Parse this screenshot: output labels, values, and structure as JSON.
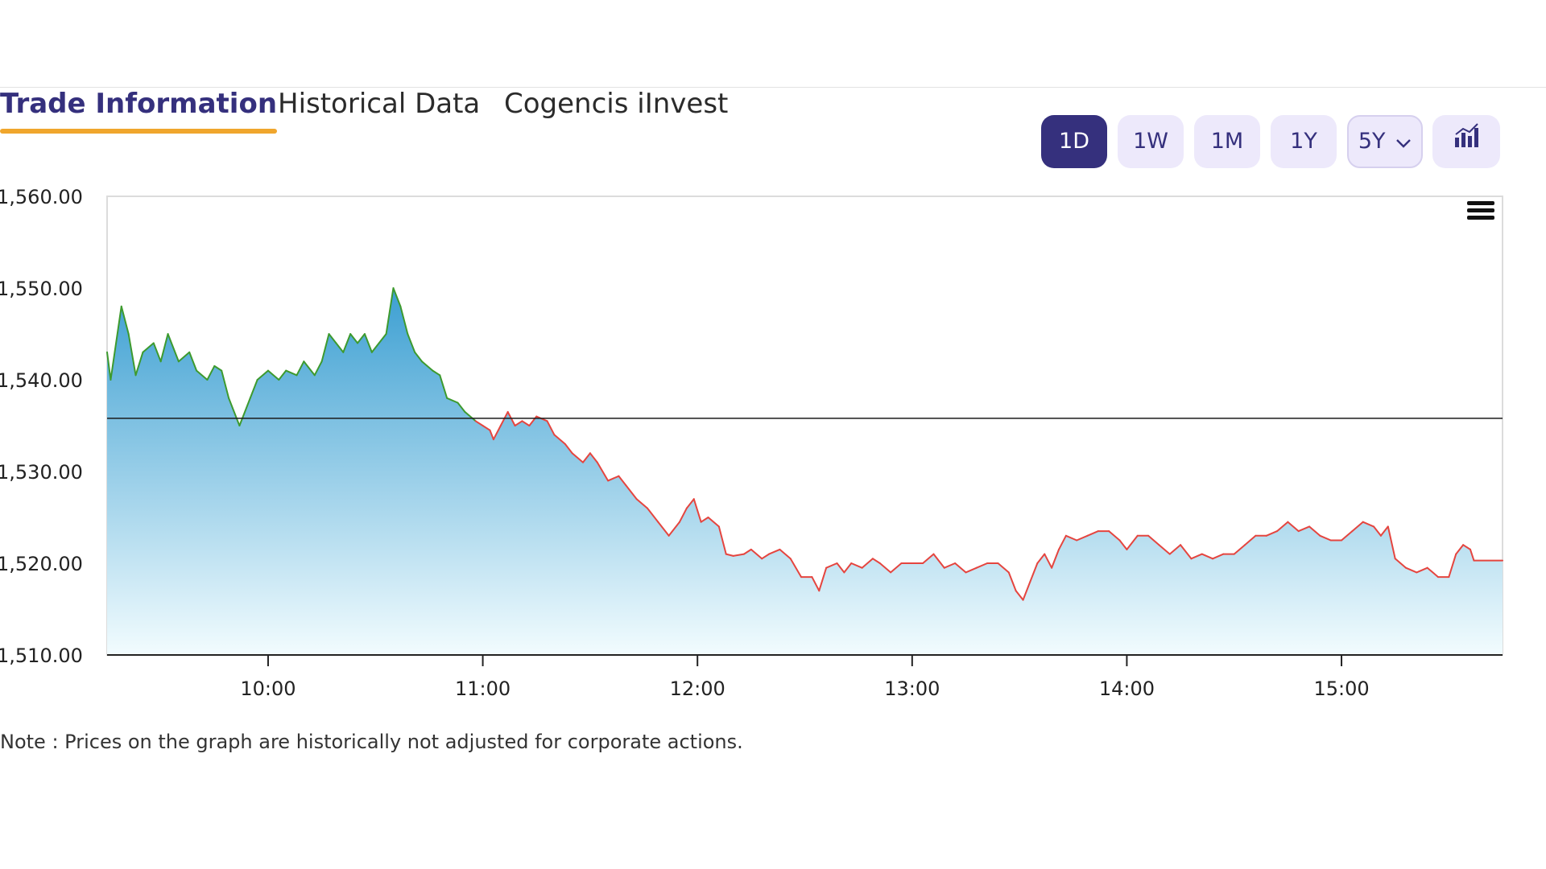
{
  "tabs": [
    {
      "label": "Trade Information",
      "active": true
    },
    {
      "label": "Historical Data",
      "active": false
    },
    {
      "label": "Cogencis iInvest",
      "active": false
    }
  ],
  "range_buttons": [
    {
      "label": "1D",
      "active": true
    },
    {
      "label": "1W",
      "active": false
    },
    {
      "label": "1M",
      "active": false
    },
    {
      "label": "1Y",
      "active": false
    },
    {
      "label": "5Y",
      "active": false,
      "dropdown": true
    }
  ],
  "icons": {
    "chart_type": "bar-chart-icon",
    "chart_menu": "hamburger-menu-icon",
    "dropdown": "chevron-down-icon"
  },
  "colors": {
    "accent": "#35307d",
    "tab_underline": "#f0a62d",
    "line_up": "#3d9a2e",
    "line_down": "#e5453f",
    "area_top": "#3c9fd2",
    "area_bottom": "#f2fcfe",
    "reference_line": "#1a1a1a"
  },
  "note": "Note : Prices on the graph are historically not adjusted for corporate actions.",
  "chart_data": {
    "type": "area",
    "x_unit": "time (HH:MM)",
    "xlim": [
      "09:15",
      "15:45"
    ],
    "ylim": [
      1510,
      1560
    ],
    "y_ticks": [
      "1,510.00",
      "1,520.00",
      "1,530.00",
      "1,540.00",
      "1,550.00",
      "1,560.00"
    ],
    "x_ticks": [
      "10:00",
      "11:00",
      "12:00",
      "13:00",
      "14:00",
      "15:00"
    ],
    "reference_line": 1535.8,
    "series": [
      {
        "points": [
          [
            "09:15",
            1543
          ],
          [
            "09:16",
            1540
          ],
          [
            "09:19",
            1548
          ],
          [
            "09:21",
            1545
          ],
          [
            "09:23",
            1540.5
          ],
          [
            "09:25",
            1543
          ],
          [
            "09:28",
            1544
          ],
          [
            "09:30",
            1542
          ],
          [
            "09:32",
            1545
          ],
          [
            "09:35",
            1542
          ],
          [
            "09:38",
            1543
          ],
          [
            "09:40",
            1541
          ],
          [
            "09:43",
            1540
          ],
          [
            "09:45",
            1541.5
          ],
          [
            "09:47",
            1541
          ],
          [
            "09:49",
            1538
          ],
          [
            "09:52",
            1535
          ],
          [
            "09:55",
            1538
          ],
          [
            "09:57",
            1540
          ],
          [
            "10:00",
            1541
          ],
          [
            "10:03",
            1540
          ],
          [
            "10:05",
            1541
          ],
          [
            "10:08",
            1540.5
          ],
          [
            "10:10",
            1542
          ],
          [
            "10:13",
            1540.5
          ],
          [
            "10:15",
            1542
          ],
          [
            "10:17",
            1545
          ],
          [
            "10:19",
            1544
          ],
          [
            "10:21",
            1543
          ],
          [
            "10:23",
            1545
          ],
          [
            "10:25",
            1544
          ],
          [
            "10:27",
            1545
          ],
          [
            "10:29",
            1543
          ],
          [
            "10:31",
            1544
          ],
          [
            "10:33",
            1545
          ],
          [
            "10:35",
            1550
          ],
          [
            "10:37",
            1548
          ],
          [
            "10:39",
            1545
          ],
          [
            "10:41",
            1543
          ],
          [
            "10:43",
            1542
          ],
          [
            "10:46",
            1541
          ],
          [
            "10:48",
            1540.5
          ],
          [
            "10:50",
            1538
          ],
          [
            "10:53",
            1537.5
          ],
          [
            "10:55",
            1536.5
          ],
          [
            "10:58",
            1535.5
          ],
          [
            "11:00",
            1535
          ],
          [
            "11:02",
            1534.5
          ],
          [
            "11:03",
            1533.5
          ],
          [
            "11:05",
            1535
          ],
          [
            "11:07",
            1536.5
          ],
          [
            "11:09",
            1535
          ],
          [
            "11:11",
            1535.5
          ],
          [
            "11:13",
            1535
          ],
          [
            "11:15",
            1536
          ],
          [
            "11:18",
            1535.5
          ],
          [
            "11:20",
            1534
          ],
          [
            "11:23",
            1533
          ],
          [
            "11:25",
            1532
          ],
          [
            "11:28",
            1531
          ],
          [
            "11:30",
            1532
          ],
          [
            "11:32",
            1531
          ],
          [
            "11:35",
            1529
          ],
          [
            "11:38",
            1529.5
          ],
          [
            "11:40",
            1528.5
          ],
          [
            "11:43",
            1527
          ],
          [
            "11:46",
            1526
          ],
          [
            "11:49",
            1524.5
          ],
          [
            "11:52",
            1523
          ],
          [
            "11:55",
            1524.5
          ],
          [
            "11:57",
            1526
          ],
          [
            "11:59",
            1527
          ],
          [
            "12:01",
            1524.5
          ],
          [
            "12:03",
            1525
          ],
          [
            "12:06",
            1524
          ],
          [
            "12:08",
            1521
          ],
          [
            "12:10",
            1520.8
          ],
          [
            "12:13",
            1521
          ],
          [
            "12:15",
            1521.5
          ],
          [
            "12:18",
            1520.5
          ],
          [
            "12:20",
            1521
          ],
          [
            "12:23",
            1521.5
          ],
          [
            "12:26",
            1520.5
          ],
          [
            "12:29",
            1518.5
          ],
          [
            "12:32",
            1518.5
          ],
          [
            "12:34",
            1517
          ],
          [
            "12:36",
            1519.5
          ],
          [
            "12:39",
            1520
          ],
          [
            "12:41",
            1519
          ],
          [
            "12:43",
            1520
          ],
          [
            "12:46",
            1519.5
          ],
          [
            "12:49",
            1520.5
          ],
          [
            "12:51",
            1520
          ],
          [
            "12:54",
            1519
          ],
          [
            "12:57",
            1520
          ],
          [
            "13:00",
            1520
          ],
          [
            "13:03",
            1520
          ],
          [
            "13:06",
            1521
          ],
          [
            "13:09",
            1519.5
          ],
          [
            "13:12",
            1520
          ],
          [
            "13:15",
            1519
          ],
          [
            "13:18",
            1519.5
          ],
          [
            "13:21",
            1520
          ],
          [
            "13:24",
            1520
          ],
          [
            "13:27",
            1519
          ],
          [
            "13:29",
            1517
          ],
          [
            "13:31",
            1516
          ],
          [
            "13:33",
            1518
          ],
          [
            "13:35",
            1520
          ],
          [
            "13:37",
            1521
          ],
          [
            "13:39",
            1519.5
          ],
          [
            "13:41",
            1521.5
          ],
          [
            "13:43",
            1523
          ],
          [
            "13:46",
            1522.5
          ],
          [
            "13:49",
            1523
          ],
          [
            "13:52",
            1523.5
          ],
          [
            "13:55",
            1523.5
          ],
          [
            "13:58",
            1522.5
          ],
          [
            "14:00",
            1521.5
          ],
          [
            "14:03",
            1523
          ],
          [
            "14:06",
            1523
          ],
          [
            "14:09",
            1522
          ],
          [
            "14:12",
            1521
          ],
          [
            "14:15",
            1522
          ],
          [
            "14:18",
            1520.5
          ],
          [
            "14:21",
            1521
          ],
          [
            "14:24",
            1520.5
          ],
          [
            "14:27",
            1521
          ],
          [
            "14:30",
            1521
          ],
          [
            "14:33",
            1522
          ],
          [
            "14:36",
            1523
          ],
          [
            "14:39",
            1523
          ],
          [
            "14:42",
            1523.5
          ],
          [
            "14:45",
            1524.5
          ],
          [
            "14:48",
            1523.5
          ],
          [
            "14:51",
            1524
          ],
          [
            "14:54",
            1523
          ],
          [
            "14:57",
            1522.5
          ],
          [
            "15:00",
            1522.5
          ],
          [
            "15:03",
            1523.5
          ],
          [
            "15:06",
            1524.5
          ],
          [
            "15:09",
            1524
          ],
          [
            "15:11",
            1523
          ],
          [
            "15:13",
            1524
          ],
          [
            "15:15",
            1520.5
          ],
          [
            "15:18",
            1519.5
          ],
          [
            "15:21",
            1519
          ],
          [
            "15:24",
            1519.5
          ],
          [
            "15:27",
            1518.5
          ],
          [
            "15:30",
            1518.5
          ],
          [
            "15:32",
            1521
          ],
          [
            "15:34",
            1522
          ],
          [
            "15:36",
            1521.5
          ],
          [
            "15:37",
            1520.3
          ],
          [
            "15:45",
            1520.3
          ]
        ]
      }
    ]
  }
}
